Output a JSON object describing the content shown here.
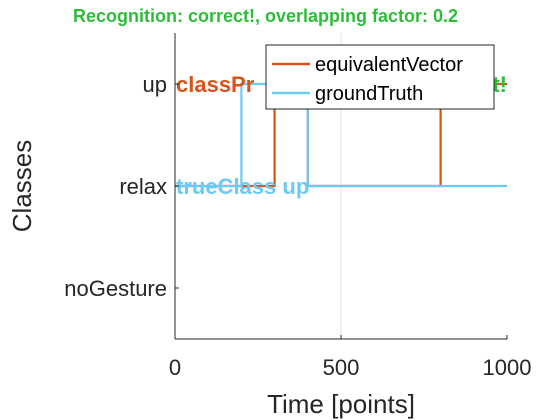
{
  "chart_data": {
    "type": "line",
    "title": "Recognition: correct!, overlapping factor: 0.2",
    "xlabel": "Time [points]",
    "ylabel": "Classes",
    "xlim": [
      0,
      1000
    ],
    "xticks": [
      0,
      500,
      1000
    ],
    "xtick_labels": [
      "0",
      "500",
      "1000"
    ],
    "y_categories": [
      "noGesture",
      "relax",
      "up"
    ],
    "ylim": [
      -0.5,
      2.5
    ],
    "grid": "x",
    "legend_position": "top-right",
    "series": [
      {
        "name": "equivalentVector",
        "color": "#d95319",
        "x": [
          0,
          300,
          300,
          400,
          400,
          800,
          800,
          1000
        ],
        "y": [
          "relax",
          "relax",
          "up",
          "up",
          "relax",
          "relax",
          "up",
          "up"
        ],
        "note_points": []
      },
      {
        "name": "groundTruth",
        "color": "#6ccbf4",
        "x": [
          0,
          200,
          200,
          400,
          400,
          1000
        ],
        "y": [
          "relax",
          "relax",
          "up",
          "up",
          "relax",
          "relax"
        ]
      }
    ],
    "annotations": [
      {
        "text": "classPr",
        "category": "up",
        "x_start": 0,
        "color": "#d95319"
      },
      {
        "text": "t!",
        "category": "up",
        "x_end": 1000,
        "color": "#2ebd3a"
      },
      {
        "text": "trueClass up",
        "category": "relax",
        "x_start": 0,
        "color": "#6ccbf4"
      }
    ],
    "title_color": "#2ebd3a"
  }
}
